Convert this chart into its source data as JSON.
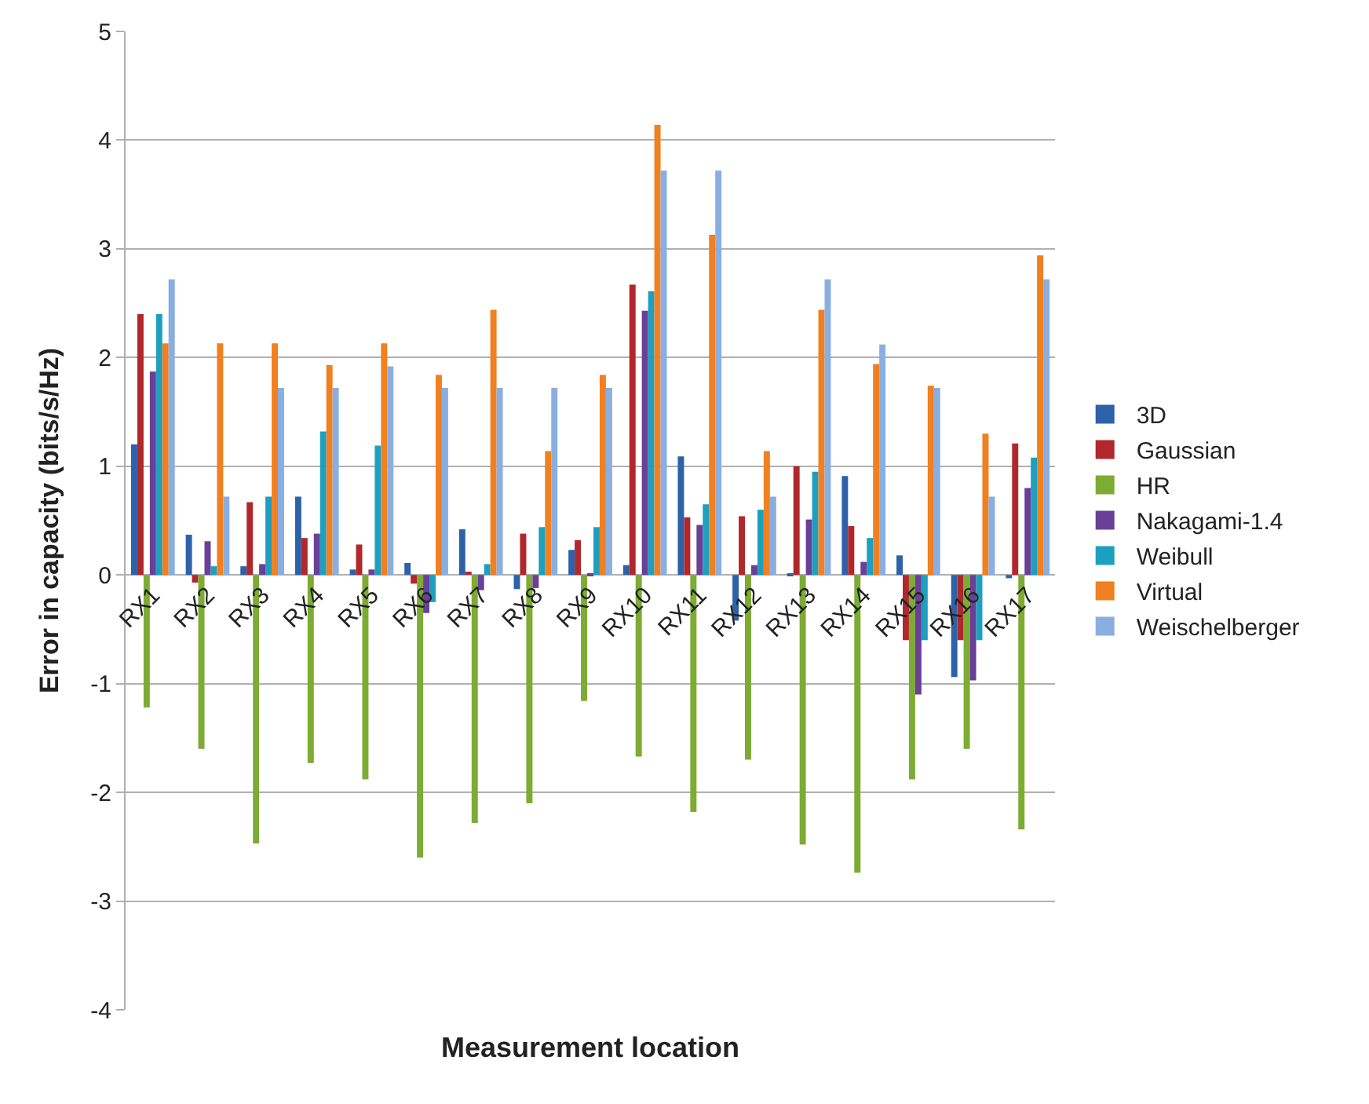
{
  "chart_data": {
    "type": "bar",
    "xlabel": "Measurement location",
    "ylabel": "Error in capacity (bits/s/Hz)",
    "categories": [
      "RX1",
      "RX2",
      "RX3",
      "RX4",
      "RX5",
      "RX6",
      "RX7",
      "RX8",
      "RX9",
      "RX10",
      "RX11",
      "RX12",
      "RX13",
      "RX14",
      "RX15",
      "RX16",
      "RX17"
    ],
    "series": [
      {
        "name": "3D",
        "color": "#2e62a8",
        "values": [
          1.2,
          0.37,
          0.08,
          0.72,
          0.05,
          0.11,
          0.42,
          -0.13,
          0.23,
          0.09,
          1.09,
          -0.42,
          0.01,
          0.91,
          0.18,
          -0.94,
          -0.03
        ]
      },
      {
        "name": "Gaussian",
        "color": "#b0282c",
        "values": [
          2.4,
          -0.07,
          0.67,
          0.34,
          0.28,
          -0.08,
          0.03,
          0.38,
          0.32,
          2.67,
          0.53,
          0.54,
          1.0,
          0.45,
          -0.6,
          -0.6,
          1.21
        ]
      },
      {
        "name": "HR",
        "color": "#7dab34",
        "values": [
          -1.22,
          -1.6,
          -2.47,
          -1.73,
          -1.88,
          -2.6,
          -2.28,
          -2.1,
          -1.16,
          -1.67,
          -2.18,
          -1.7,
          -2.48,
          -2.74,
          -1.88,
          -1.6,
          -2.34
        ]
      },
      {
        "name": "Nakagami-1.4",
        "color": "#6a3f98",
        "values": [
          1.87,
          0.31,
          0.1,
          0.38,
          0.05,
          -0.35,
          -0.14,
          -0.12,
          0.01,
          2.43,
          0.46,
          0.09,
          0.51,
          0.12,
          -1.1,
          -0.97,
          0.8
        ]
      },
      {
        "name": "Weibull",
        "color": "#1f9fbf",
        "values": [
          2.4,
          0.08,
          0.72,
          1.32,
          1.19,
          -0.25,
          0.1,
          0.44,
          0.44,
          2.61,
          0.65,
          0.6,
          0.95,
          0.34,
          -0.6,
          -0.6,
          1.08
        ]
      },
      {
        "name": "Virtual",
        "color": "#f08020",
        "values": [
          2.13,
          2.13,
          2.13,
          1.93,
          2.13,
          1.84,
          2.44,
          1.14,
          1.84,
          4.14,
          3.13,
          1.14,
          2.44,
          1.94,
          1.74,
          1.3,
          2.94
        ]
      },
      {
        "name": "Weischelberger",
        "color": "#8aaee0",
        "values": [
          2.72,
          0.72,
          1.72,
          1.72,
          1.92,
          1.72,
          1.72,
          1.72,
          1.72,
          3.72,
          3.72,
          0.72,
          2.72,
          2.12,
          1.72,
          0.72,
          2.72
        ]
      }
    ],
    "ylim": [
      -4,
      5
    ],
    "yticks": [
      -4,
      -3,
      -2,
      -1,
      0,
      1,
      2,
      3,
      4,
      5
    ],
    "grid": "y",
    "legend": "right"
  }
}
